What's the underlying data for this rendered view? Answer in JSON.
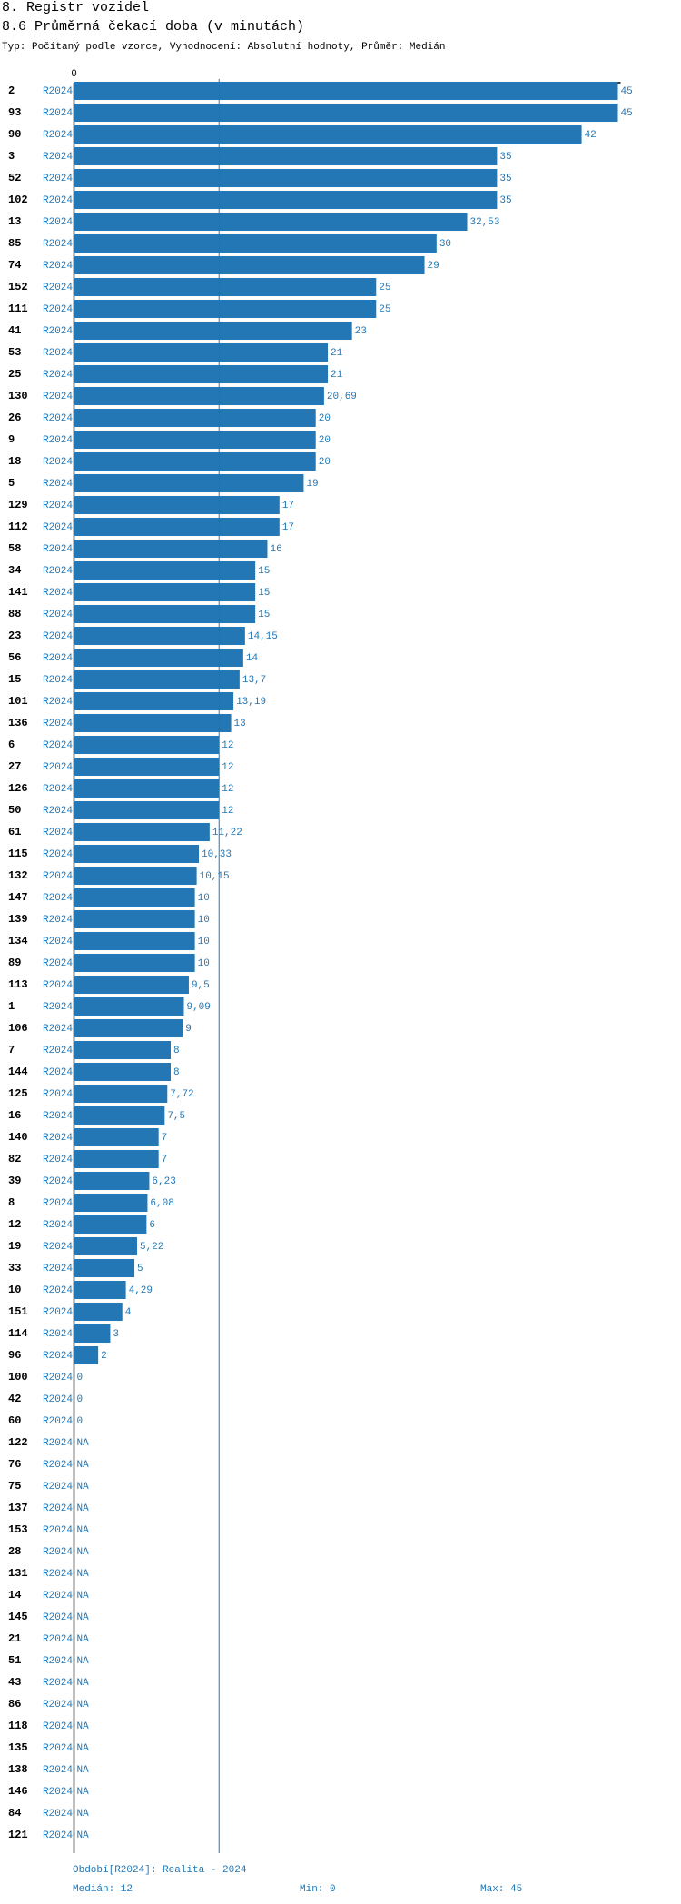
{
  "header": {
    "title": "8. Registr vozidel",
    "subtitle": "8.6 Průměrná čekací doba (v minutách)",
    "info": "Typ: Počítaný podle vzorce, Vyhodnocení: Absolutní hodnoty, Průměr: Medián"
  },
  "chart_data": {
    "type": "bar",
    "orientation": "horizontal",
    "color": "#2277b4",
    "categories": [
      "2",
      "93",
      "90",
      "3",
      "52",
      "102",
      "13",
      "85",
      "74",
      "152",
      "111",
      "41",
      "53",
      "25",
      "130",
      "26",
      "9",
      "18",
      "5",
      "129",
      "112",
      "58",
      "34",
      "141",
      "88",
      "23",
      "56",
      "15",
      "101",
      "136",
      "6",
      "27",
      "126",
      "50",
      "61",
      "115",
      "132",
      "147",
      "139",
      "134",
      "89",
      "113",
      "1",
      "106",
      "7",
      "144",
      "125",
      "16",
      "140",
      "82",
      "39",
      "8",
      "12",
      "19",
      "33",
      "10",
      "151",
      "114",
      "96",
      "100",
      "42",
      "60",
      "122",
      "76",
      "75",
      "137",
      "153",
      "28",
      "131",
      "14",
      "145",
      "21",
      "51",
      "43",
      "86",
      "118",
      "135",
      "138",
      "146",
      "84",
      "121"
    ],
    "series": [
      {
        "name": "R2024",
        "color": "#2277b4",
        "values": [
          45,
          45,
          42,
          35,
          35,
          35,
          32.53,
          30,
          29,
          25,
          25,
          23,
          21,
          21,
          20.69,
          20,
          20,
          20,
          19,
          17,
          17,
          16,
          15,
          15,
          15,
          14.15,
          14,
          13.7,
          13.19,
          13,
          12,
          12,
          12,
          12,
          11.22,
          10.33,
          10.15,
          10,
          10,
          10,
          10,
          9.5,
          9.09,
          9,
          8,
          8,
          7.72,
          7.5,
          7,
          7,
          6.23,
          6.08,
          6,
          5.22,
          5,
          4.29,
          4,
          3,
          2,
          0,
          0,
          0,
          null,
          null,
          null,
          null,
          null,
          null,
          null,
          null,
          null,
          null,
          null,
          null,
          null,
          null,
          null,
          null,
          null,
          null,
          null
        ],
        "value_labels": [
          "45",
          "45",
          "42",
          "35",
          "35",
          "35",
          "32,53",
          "30",
          "29",
          "25",
          "25",
          "23",
          "21",
          "21",
          "20,69",
          "20",
          "20",
          "20",
          "19",
          "17",
          "17",
          "16",
          "15",
          "15",
          "15",
          "14,15",
          "14",
          "13,7",
          "13,19",
          "13",
          "12",
          "12",
          "12",
          "12",
          "11,22",
          "10,33",
          "10,15",
          "10",
          "10",
          "10",
          "10",
          "9,5",
          "9,09",
          "9",
          "8",
          "8",
          "7,72",
          "7,5",
          "7",
          "7",
          "6,23",
          "6,08",
          "6",
          "5,22",
          "5",
          "4,29",
          "4",
          "3",
          "2",
          "0",
          "0",
          "0",
          "NA",
          "NA",
          "NA",
          "NA",
          "NA",
          "NA",
          "NA",
          "NA",
          "NA",
          "NA",
          "NA",
          "NA",
          "NA",
          "NA",
          "NA",
          "NA",
          "NA",
          "NA",
          "NA"
        ]
      }
    ],
    "xlim": [
      0,
      45
    ],
    "xticks": [
      0
    ],
    "median": 12
  },
  "footer": {
    "period": "Období[R2024]: Realita - 2024",
    "median": "Medián: 12",
    "min": "Min: 0",
    "max": "Max: 45"
  }
}
